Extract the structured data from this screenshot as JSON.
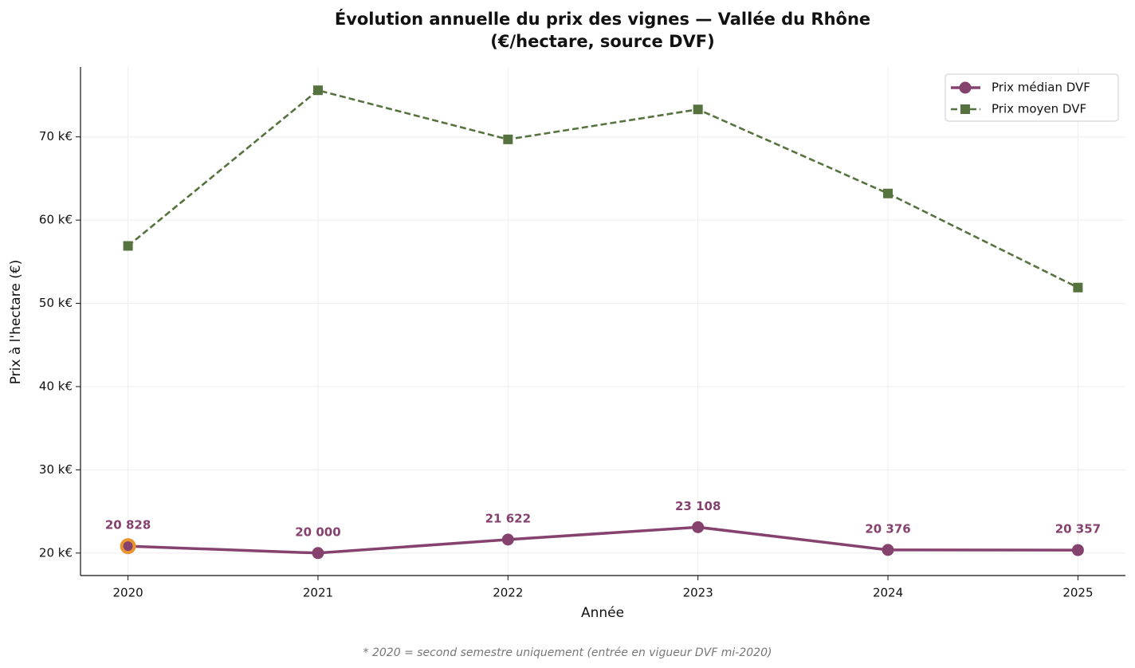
{
  "chart_data": {
    "type": "line",
    "title": [
      "Évolution annuelle du prix des vignes — Vallée du Rhône",
      "(€/hectare, source DVF)"
    ],
    "xlabel": "Année",
    "ylabel": "Prix à l'hectare (€)",
    "footnote": "* 2020 = second semestre uniquement (entrée en vigueur DVF mi-2020)",
    "x": [
      2020,
      2021,
      2022,
      2023,
      2024,
      2025
    ],
    "series": [
      {
        "name": "Prix médian DVF",
        "color": "#86426f",
        "marker": "circle",
        "linestyle": "solid",
        "values": [
          20828,
          20000,
          21622,
          23108,
          20376,
          20357
        ],
        "value_labels": [
          "20 828",
          "20 000",
          "21 622",
          "23 108",
          "20 376",
          "20 357"
        ]
      },
      {
        "name": "Prix moyen DVF",
        "color": "#56733f",
        "marker": "square",
        "linestyle": "dashed",
        "values": [
          56900,
          75600,
          69700,
          73300,
          63200,
          51900
        ]
      }
    ],
    "highlight": {
      "series": 0,
      "point": 0,
      "color": "#e8952f"
    },
    "xlim": [
      2019.75,
      2025.25
    ],
    "ylim": [
      17300,
      78400
    ],
    "xticks": [
      2020,
      2021,
      2022,
      2023,
      2024,
      2025
    ],
    "yticks": [
      {
        "value": 20000,
        "label": "20 k€"
      },
      {
        "value": 30000,
        "label": "30 k€"
      },
      {
        "value": 40000,
        "label": "40 k€"
      },
      {
        "value": 50000,
        "label": "50 k€"
      },
      {
        "value": 60000,
        "label": "60 k€"
      },
      {
        "value": 70000,
        "label": "70 k€"
      }
    ],
    "grid": true,
    "legend": "upper right"
  }
}
